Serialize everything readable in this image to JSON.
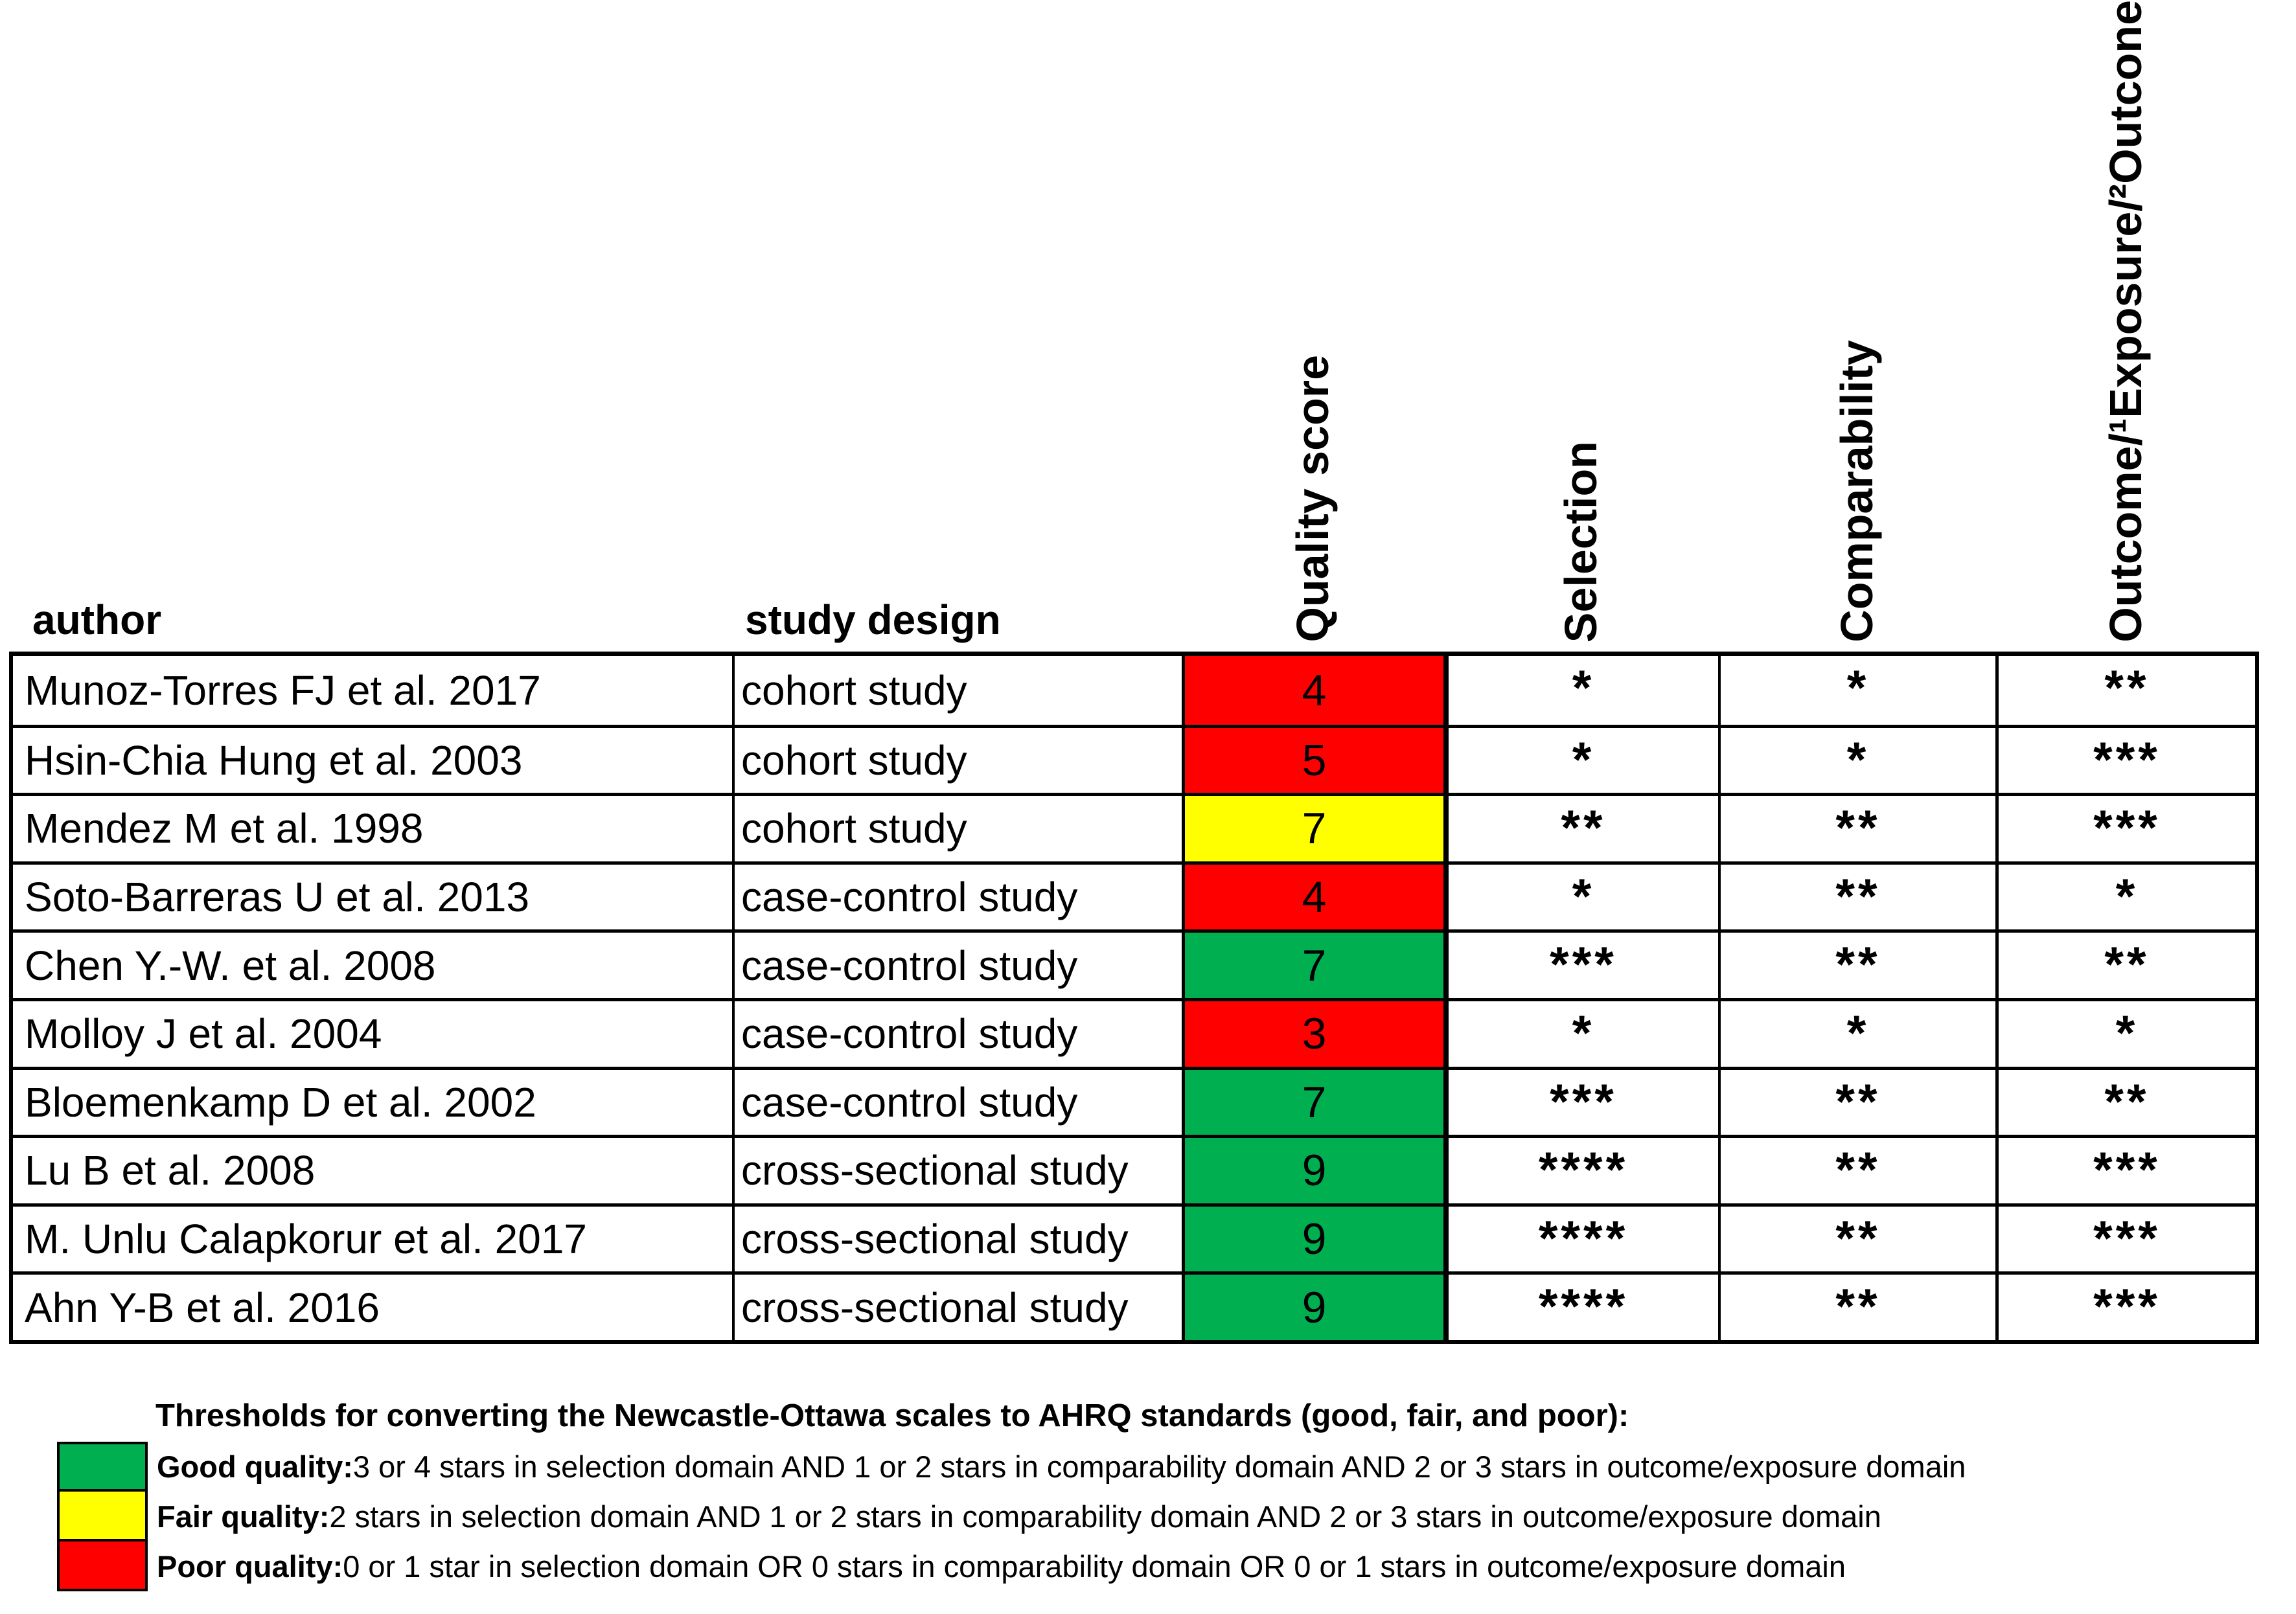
{
  "colors": {
    "green": "#00B050",
    "yellow": "#FFFF00",
    "red": "#FF0000",
    "border": "#000000"
  },
  "chart_data": {
    "type": "table",
    "headers": {
      "author": "author",
      "study_design": "study design",
      "quality_score": "Quality score",
      "selection": "Selection",
      "comparability": "Comparability",
      "outcome": "Outcome/¹Exposure/²Outcone"
    },
    "rows": [
      {
        "author": "Munoz-Torres FJ et al. 2017",
        "study_design": "cohort study",
        "quality_score": "4",
        "quality_color": "red",
        "selection": "*",
        "comparability": "*",
        "outcome": "**"
      },
      {
        "author": "Hsin-Chia Hung et al. 2003",
        "study_design": "cohort study",
        "quality_score": "5",
        "quality_color": "red",
        "selection": "*",
        "comparability": "*",
        "outcome": "***"
      },
      {
        "author": "Mendez M et al. 1998",
        "study_design": "cohort study",
        "quality_score": "7",
        "quality_color": "yellow",
        "selection": "**",
        "comparability": "**",
        "outcome": "***"
      },
      {
        "author": "Soto-Barreras U et al. 2013",
        "study_design": "case-control study",
        "quality_score": "4",
        "quality_color": "red",
        "selection": "*",
        "comparability": "**",
        "outcome": "*"
      },
      {
        "author": "Chen Y.-W. et al. 2008",
        "study_design": "case-control study",
        "quality_score": "7",
        "quality_color": "green",
        "selection": "***",
        "comparability": "**",
        "outcome": "**"
      },
      {
        "author": "Molloy J et al. 2004",
        "study_design": "case-control study",
        "quality_score": "3",
        "quality_color": "red",
        "selection": "*",
        "comparability": "*",
        "outcome": "*"
      },
      {
        "author": "Bloemenkamp D et al. 2002",
        "study_design": "case-control study",
        "quality_score": "7",
        "quality_color": "green",
        "selection": "***",
        "comparability": "**",
        "outcome": "**"
      },
      {
        "author": "Lu B et al. 2008",
        "study_design": "cross-sectional study",
        "quality_score": "9",
        "quality_color": "green",
        "selection": "****",
        "comparability": "**",
        "outcome": "***"
      },
      {
        "author": "M. Unlu Calapkorur et al. 2017",
        "study_design": "cross-sectional study",
        "quality_score": "9",
        "quality_color": "green",
        "selection": "****",
        "comparability": "**",
        "outcome": "***"
      },
      {
        "author": "Ahn Y-B et al. 2016",
        "study_design": "cross-sectional study",
        "quality_score": "9",
        "quality_color": "green",
        "selection": "****",
        "comparability": "**",
        "outcome": "***"
      }
    ],
    "legend": {
      "title": "Thresholds for converting the Newcastle-Ottawa scales to AHRQ standards (good, fair, and poor):",
      "items": [
        {
          "color": "green",
          "label": "Good quality:",
          "text": " 3 or 4 stars in selection domain AND 1 or 2 stars in comparability domain AND 2 or 3 stars in outcome/exposure domain"
        },
        {
          "color": "yellow",
          "label": "Fair quality:",
          "text": " 2 stars in selection domain AND 1 or 2 stars in comparability domain AND 2 or 3 stars in outcome/exposure domain"
        },
        {
          "color": "red",
          "label": "Poor quality:",
          "text": " 0 or 1 star in selection domain OR 0 stars in comparability domain OR 0 or 1 stars in outcome/exposure domain"
        }
      ]
    }
  }
}
